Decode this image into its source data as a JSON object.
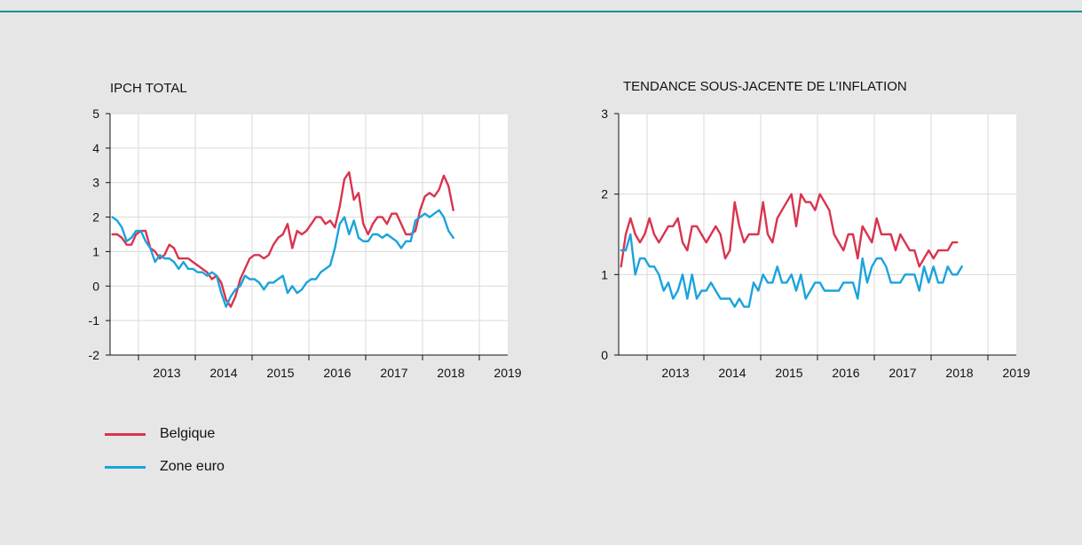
{
  "chart_data": [
    {
      "type": "line",
      "title": "IPCH TOTAL",
      "xlabel": "",
      "ylabel": "",
      "ylim": [
        -2,
        5
      ],
      "yticks": [
        "5",
        "4",
        "3",
        "2",
        "1",
        "0",
        "-1",
        "-2"
      ],
      "year_labels": [
        "2013",
        "2014",
        "2015",
        "2016",
        "2017",
        "2018",
        "2019"
      ],
      "grid": true,
      "x_start": "2012-07",
      "x_end": "2019-07",
      "series": [
        {
          "name": "Belgique",
          "color": "#d9344e",
          "start": "2012-07",
          "values": [
            1.5,
            1.5,
            1.4,
            1.2,
            1.2,
            1.5,
            1.6,
            1.6,
            1.1,
            1.0,
            0.8,
            0.9,
            1.2,
            1.1,
            0.8,
            0.8,
            0.8,
            0.7,
            0.6,
            0.5,
            0.4,
            0.2,
            0.3,
            0.1,
            -0.4,
            -0.6,
            -0.3,
            0.2,
            0.5,
            0.8,
            0.9,
            0.9,
            0.8,
            0.9,
            1.2,
            1.4,
            1.5,
            1.8,
            1.1,
            1.6,
            1.5,
            1.6,
            1.8,
            2.0,
            2.0,
            1.8,
            1.9,
            1.7,
            2.3,
            3.1,
            3.3,
            2.5,
            2.7,
            1.8,
            1.5,
            1.8,
            2.0,
            2.0,
            1.8,
            2.1,
            2.1,
            1.8,
            1.5,
            1.5,
            1.6,
            2.2,
            2.6,
            2.7,
            2.6,
            2.8,
            3.2,
            2.9,
            2.2
          ]
        },
        {
          "name": "Zone euro",
          "color": "#1ba3dc",
          "start": "2012-07",
          "values": [
            2.0,
            1.9,
            1.7,
            1.3,
            1.4,
            1.6,
            1.6,
            1.3,
            1.1,
            0.7,
            0.9,
            0.8,
            0.8,
            0.7,
            0.5,
            0.7,
            0.5,
            0.5,
            0.4,
            0.4,
            0.3,
            0.4,
            0.3,
            -0.2,
            -0.6,
            -0.3,
            -0.1,
            0.0,
            0.3,
            0.2,
            0.2,
            0.1,
            -0.1,
            0.1,
            0.1,
            0.2,
            0.3,
            -0.2,
            0.0,
            -0.2,
            -0.1,
            0.1,
            0.2,
            0.2,
            0.4,
            0.5,
            0.6,
            1.1,
            1.8,
            2.0,
            1.5,
            1.9,
            1.4,
            1.3,
            1.3,
            1.5,
            1.5,
            1.4,
            1.5,
            1.4,
            1.3,
            1.1,
            1.3,
            1.3,
            1.9,
            2.0,
            2.1,
            2.0,
            2.1,
            2.2,
            2.0,
            1.6,
            1.4
          ]
        }
      ]
    },
    {
      "type": "line",
      "title": "TENDANCE SOUS-JACENTE DE L’INFLATION",
      "xlabel": "",
      "ylabel": "",
      "ylim": [
        0,
        3
      ],
      "yticks": [
        "3",
        "2",
        "1",
        "0"
      ],
      "year_labels": [
        "2013",
        "2014",
        "2015",
        "2016",
        "2017",
        "2018",
        "2019"
      ],
      "grid": true,
      "x_start": "2012-07",
      "x_end": "2019-07",
      "series": [
        {
          "name": "Belgique",
          "color": "#d9344e",
          "start": "2012-07",
          "values": [
            1.1,
            1.5,
            1.7,
            1.5,
            1.4,
            1.5,
            1.7,
            1.5,
            1.4,
            1.5,
            1.6,
            1.6,
            1.7,
            1.4,
            1.3,
            1.6,
            1.6,
            1.5,
            1.4,
            1.5,
            1.6,
            1.5,
            1.2,
            1.3,
            1.9,
            1.6,
            1.4,
            1.5,
            1.5,
            1.5,
            1.9,
            1.5,
            1.4,
            1.7,
            1.8,
            1.9,
            2.0,
            1.6,
            2.0,
            1.9,
            1.9,
            1.8,
            2.0,
            1.9,
            1.8,
            1.5,
            1.4,
            1.3,
            1.5,
            1.5,
            1.2,
            1.6,
            1.5,
            1.4,
            1.7,
            1.5,
            1.5,
            1.5,
            1.3,
            1.5,
            1.4,
            1.3,
            1.3,
            1.1,
            1.2,
            1.3,
            1.2,
            1.3,
            1.3,
            1.3,
            1.4,
            1.4
          ]
        },
        {
          "name": "Zone euro",
          "color": "#1ba3dc",
          "start": "2012-07",
          "values": [
            1.3,
            1.3,
            1.5,
            1.0,
            1.2,
            1.2,
            1.1,
            1.1,
            1.0,
            0.8,
            0.9,
            0.7,
            0.8,
            1.0,
            0.7,
            1.0,
            0.7,
            0.8,
            0.8,
            0.9,
            0.8,
            0.7,
            0.7,
            0.7,
            0.6,
            0.7,
            0.6,
            0.6,
            0.9,
            0.8,
            1.0,
            0.9,
            0.9,
            1.1,
            0.9,
            0.9,
            1.0,
            0.8,
            1.0,
            0.7,
            0.8,
            0.9,
            0.9,
            0.8,
            0.8,
            0.8,
            0.8,
            0.9,
            0.9,
            0.9,
            0.7,
            1.2,
            0.9,
            1.1,
            1.2,
            1.2,
            1.1,
            0.9,
            0.9,
            0.9,
            1.0,
            1.0,
            1.0,
            0.8,
            1.1,
            0.9,
            1.1,
            0.9,
            0.9,
            1.1,
            1.0,
            1.0,
            1.1
          ]
        }
      ]
    }
  ],
  "legend": [
    {
      "label": "Belgique",
      "color": "#d9344e"
    },
    {
      "label": "Zone euro",
      "color": "#1ba3dc"
    }
  ]
}
